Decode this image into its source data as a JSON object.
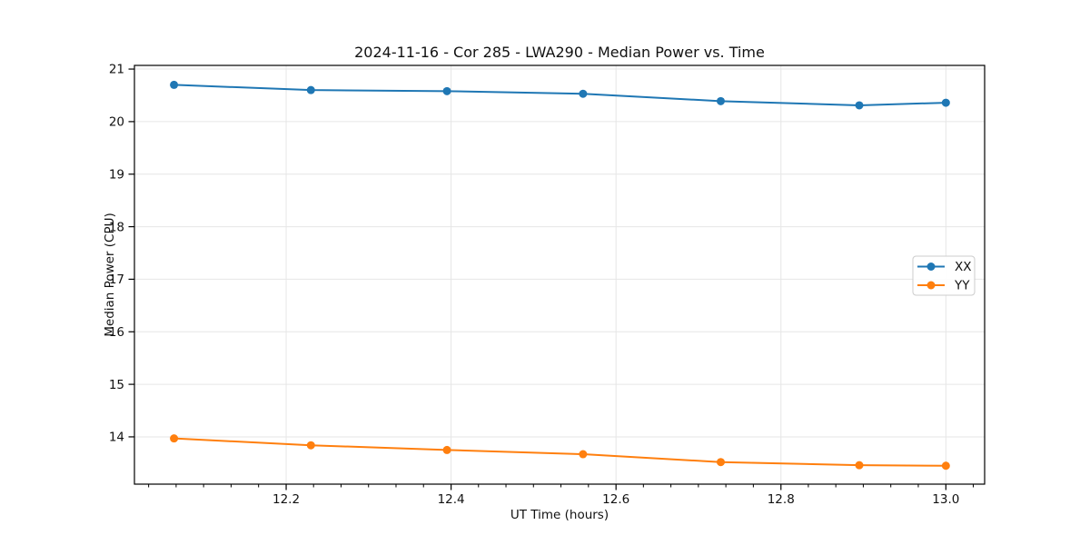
{
  "figure": {
    "title": "2024-11-16 - Cor 285 - LWA290 - Median Power vs. Time",
    "xlabel": "UT Time (hours)",
    "ylabel": "Median Power (CPU)"
  },
  "chart_data": {
    "type": "line",
    "title": "2024-11-16 - Cor 285 - LWA290 - Median Power vs. Time",
    "xlabel": "UT Time (hours)",
    "ylabel": "Median Power (CPU)",
    "x": [
      12.064,
      12.23,
      12.395,
      12.56,
      12.727,
      12.895,
      13.0
    ],
    "series": [
      {
        "name": "XX",
        "color": "#1f77b4",
        "values": [
          20.7,
          20.6,
          20.58,
          20.53,
          20.39,
          20.31,
          20.36
        ]
      },
      {
        "name": "YY",
        "color": "#ff7f0e",
        "values": [
          13.97,
          13.84,
          13.75,
          13.67,
          13.52,
          13.46,
          13.45
        ]
      }
    ],
    "xlim": [
      12.016,
      13.047
    ],
    "ylim": [
      13.1,
      21.07
    ],
    "xticks": [
      12.2,
      12.4,
      12.6,
      12.8,
      13.0
    ],
    "yticks": [
      14,
      15,
      16,
      17,
      18,
      19,
      20,
      21
    ],
    "x_minor_step": 0.033333,
    "grid": true,
    "legend": {
      "labels": [
        "XX",
        "YY"
      ],
      "position": "center right"
    },
    "marker": "circle",
    "line_width": 2,
    "colors": {
      "axis": "#000000",
      "grid": "#e6e6e6",
      "legend_border": "#cccccc",
      "background": "#ffffff"
    }
  }
}
